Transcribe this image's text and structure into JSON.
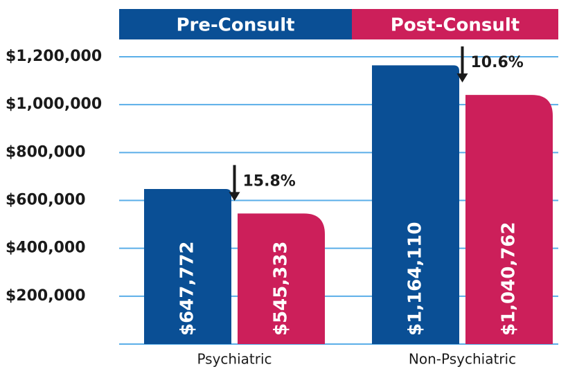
{
  "chart_data": {
    "type": "bar",
    "categories": [
      "Psychiatric",
      "Non-Psychiatric"
    ],
    "series": [
      {
        "name": "Pre-Consult",
        "color": "#0a4f95",
        "values": [
          647772,
          1164110
        ],
        "value_labels": [
          "$647,772",
          "$1,164,110"
        ]
      },
      {
        "name": "Post-Consult",
        "color": "#cc1f5a",
        "values": [
          545333,
          1040762
        ],
        "value_labels": [
          "$545,333",
          "$1,040,762"
        ]
      }
    ],
    "annotations": [
      "15.8%",
      "10.6%"
    ],
    "ylim": [
      0,
      1200000
    ],
    "yticks": [
      {
        "value": 200000,
        "label": "$200,000"
      },
      {
        "value": 400000,
        "label": "$400,000"
      },
      {
        "value": 600000,
        "label": "$600,000"
      },
      {
        "value": 800000,
        "label": "$800,000"
      },
      {
        "value": 1000000,
        "label": "$1,000,000"
      },
      {
        "value": 1200000,
        "label": "$1,200,000"
      }
    ],
    "grid": true
  }
}
